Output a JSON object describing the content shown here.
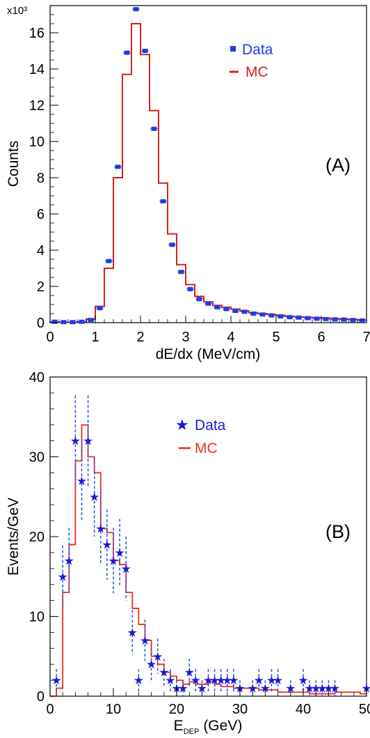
{
  "chart_data": [
    {
      "type": "histogram",
      "panel_label": "(A)",
      "xlabel": "dE/dx (MeV/cm)",
      "ylabel": "Counts",
      "y_multiplier": "x10³",
      "xlim": [
        0,
        7
      ],
      "ylim": [
        0,
        17.5
      ],
      "x_ticks": [
        0,
        1,
        2,
        3,
        4,
        5,
        6,
        7
      ],
      "y_ticks": [
        0,
        2,
        4,
        6,
        8,
        10,
        12,
        14,
        16
      ],
      "grid": false,
      "legend_position": "top-right",
      "colors": {
        "data": "#1a3fe6",
        "mc": "#d42020"
      },
      "bin_edges": [
        0.0,
        0.2,
        0.4,
        0.6,
        0.8,
        1.0,
        1.2,
        1.4,
        1.6,
        1.8,
        2.0,
        2.2,
        2.4,
        2.6,
        2.8,
        3.0,
        3.2,
        3.4,
        3.6,
        3.8,
        4.0,
        4.2,
        4.4,
        4.6,
        4.8,
        5.0,
        5.2,
        5.4,
        5.6,
        5.8,
        6.0,
        6.2,
        6.4,
        6.6,
        6.8,
        7.0
      ],
      "series": [
        {
          "name": "Data",
          "style": "markers",
          "x": [
            0.1,
            0.3,
            0.5,
            0.7,
            0.9,
            1.1,
            1.3,
            1.5,
            1.7,
            1.9,
            2.1,
            2.3,
            2.5,
            2.7,
            2.9,
            3.1,
            3.3,
            3.5,
            3.7,
            3.9,
            4.1,
            4.3,
            4.5,
            4.7,
            4.9,
            5.1,
            5.3,
            5.5,
            5.7,
            5.9,
            6.1,
            6.3,
            6.5,
            6.7,
            6.9
          ],
          "values": [
            0.05,
            0.03,
            0.03,
            0.05,
            0.15,
            0.8,
            3.4,
            8.6,
            14.9,
            17.3,
            15.0,
            10.7,
            6.7,
            4.3,
            2.8,
            1.85,
            1.3,
            1.05,
            0.85,
            0.75,
            0.65,
            0.6,
            0.5,
            0.45,
            0.4,
            0.35,
            0.3,
            0.28,
            0.25,
            0.22,
            0.2,
            0.18,
            0.17,
            0.15,
            0.12
          ]
        },
        {
          "name": "MC",
          "style": "step",
          "values": [
            0.03,
            0.02,
            0.02,
            0.05,
            0.2,
            0.9,
            3.0,
            8.0,
            13.7,
            16.5,
            14.8,
            11.7,
            7.7,
            4.9,
            3.2,
            2.1,
            1.45,
            1.15,
            0.95,
            0.85,
            0.75,
            0.65,
            0.55,
            0.5,
            0.45,
            0.4,
            0.35,
            0.32,
            0.3,
            0.27,
            0.25,
            0.22,
            0.2,
            0.18,
            0.15
          ]
        }
      ]
    },
    {
      "type": "histogram",
      "panel_label": "(B)",
      "xlabel_main": "E",
      "xlabel_sub": "DEP",
      "xlabel_unit": "(GeV)",
      "ylabel": "Events/GeV",
      "xlim": [
        0,
        50
      ],
      "ylim": [
        0,
        40
      ],
      "x_ticks": [
        0,
        10,
        20,
        30,
        40,
        50
      ],
      "y_ticks": [
        0,
        10,
        20,
        30,
        40
      ],
      "grid": false,
      "legend_position": "top-right",
      "colors": {
        "data": "#1a1ad8",
        "mc": "#e8301c",
        "errors": "#2a4ee6"
      },
      "series": [
        {
          "name": "Data",
          "style": "stars",
          "x": [
            1,
            2,
            3,
            4,
            5,
            6,
            7,
            8,
            9,
            10,
            11,
            12,
            13,
            14,
            15,
            16,
            17,
            18,
            19,
            20,
            21,
            22,
            23,
            24,
            25,
            26,
            27,
            28,
            29,
            30,
            31,
            32,
            33,
            34,
            35,
            36,
            37,
            38,
            39,
            40,
            41,
            42,
            43,
            44,
            45,
            46,
            47,
            48,
            49,
            50
          ],
          "values": [
            2,
            15,
            17,
            32,
            27,
            32,
            25,
            21,
            19,
            17,
            18,
            16,
            8,
            2,
            7,
            4,
            5,
            3,
            2,
            1,
            1,
            3,
            2,
            1,
            2,
            2,
            2,
            2,
            2,
            1,
            0,
            1,
            2,
            1,
            2,
            2,
            0,
            1,
            0,
            2,
            1,
            1,
            1,
            1,
            1,
            0,
            0,
            0,
            0,
            1
          ],
          "errors": [
            1.4,
            3.9,
            4.1,
            5.7,
            5.2,
            5.7,
            5.0,
            4.6,
            4.4,
            4.1,
            4.2,
            4.0,
            2.8,
            1.4,
            2.6,
            2.0,
            2.2,
            1.7,
            1.4,
            1.0,
            1.0,
            1.7,
            1.4,
            1.0,
            1.4,
            1.4,
            1.4,
            1.4,
            1.4,
            1.0,
            0,
            1.0,
            1.4,
            1.0,
            1.4,
            1.4,
            0,
            1.0,
            0,
            1.4,
            1.0,
            1.0,
            1.0,
            1.0,
            1.0,
            0,
            0,
            0,
            0,
            1.0
          ]
        },
        {
          "name": "MC",
          "style": "step",
          "bin_edges": [
            0,
            1,
            2,
            3,
            4,
            5,
            6,
            7,
            8,
            9,
            10,
            11,
            12,
            13,
            14,
            15,
            16,
            17,
            18,
            19,
            20,
            21,
            22,
            23,
            24,
            25,
            26,
            27,
            28,
            29,
            30,
            31,
            32,
            33,
            34,
            35,
            36,
            37,
            38,
            39,
            40,
            41,
            42,
            43,
            44,
            45,
            46,
            47,
            48,
            49,
            50
          ],
          "values": [
            0,
            1,
            13,
            19,
            29.5,
            34,
            30,
            28,
            21,
            20.5,
            17,
            16.5,
            13,
            11,
            9,
            7,
            5,
            4,
            3,
            2.5,
            2,
            1.5,
            1.8,
            1.5,
            1.5,
            1.8,
            1.5,
            1.2,
            1.2,
            1,
            1,
            1,
            1,
            0.8,
            0.8,
            0.8,
            0.5,
            0.5,
            0.5,
            0.5,
            0.5,
            0.3,
            0.3,
            0.3,
            0.3,
            0.5,
            0.5,
            0.5,
            0.5,
            0.3
          ]
        }
      ]
    }
  ]
}
